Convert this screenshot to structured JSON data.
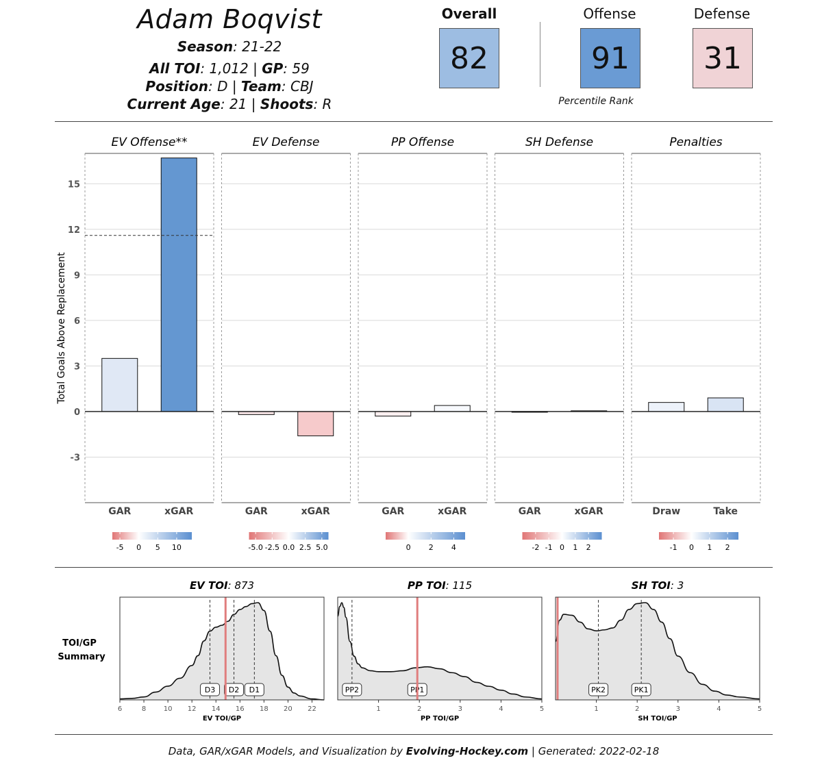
{
  "header": {
    "player_name": "Adam Boqvist",
    "season_label": "Season",
    "season_value": ": 21-22",
    "toi_label": "All TOI",
    "toi_value": ": 1,012 | ",
    "gp_label": "GP",
    "gp_value": ": 59",
    "position_label": "Position",
    "position_value": ": D | ",
    "team_label": "Team",
    "team_value": ": CBJ",
    "age_label": "Current Age",
    "age_value": ": 21 | ",
    "shoots_label": "Shoots",
    "shoots_value": ": R"
  },
  "ranks": {
    "overall_label": "Overall",
    "overall_value": "82",
    "overall_color": "#9dbde2",
    "offense_label": "Offense",
    "offense_value": "91",
    "offense_color": "#6a9bd4",
    "defense_label": "Defense",
    "defense_value": "31",
    "defense_color": "#f0d3d6",
    "note": "Percentile Rank"
  },
  "chart_data": [
    {
      "type": "bar",
      "ylabel": "Total Goals Above Replacement",
      "ylim": [
        -6,
        17
      ],
      "yticks": [
        -3,
        0,
        3,
        6,
        9,
        12,
        15
      ],
      "grid": true,
      "panels": [
        {
          "title": "EV Offense**",
          "categories": [
            "GAR",
            "xGAR"
          ],
          "values": [
            3.5,
            16.7
          ],
          "reference_line": 11.6,
          "colors": [
            "#e0e8f5",
            "#6497d1"
          ],
          "legend": {
            "ticks": [
              "-5",
              "0",
              "5",
              "10"
            ],
            "min": -7,
            "max": 14
          }
        },
        {
          "title": "EV Defense",
          "categories": [
            "GAR",
            "xGAR"
          ],
          "values": [
            -0.2,
            -1.6
          ],
          "colors": [
            "#f6e3e5",
            "#f6cacb"
          ],
          "legend": {
            "ticks": [
              "-5.0",
              "-2.5",
              "0.0",
              "2.5",
              "5.0"
            ],
            "min": -6,
            "max": 6
          }
        },
        {
          "title": "PP Offense",
          "categories": [
            "GAR",
            "xGAR"
          ],
          "values": [
            -0.3,
            0.4
          ],
          "colors": [
            "#fbeeef",
            "#f7f9fd"
          ],
          "legend": {
            "ticks": [
              "0",
              "2",
              "4"
            ],
            "min": -2,
            "max": 5
          }
        },
        {
          "title": "SH Defense",
          "categories": [
            "GAR",
            "xGAR"
          ],
          "values": [
            0.0,
            0.05
          ],
          "colors": [
            "#f7f7f7",
            "#f7f7f7"
          ],
          "legend": {
            "ticks": [
              "-2",
              "-1",
              "0",
              "1",
              "2"
            ],
            "min": -3,
            "max": 3
          }
        },
        {
          "title": "Penalties",
          "categories": [
            "Draw",
            "Take"
          ],
          "values": [
            0.6,
            0.9
          ],
          "colors": [
            "#edf2fa",
            "#d9e4f4"
          ],
          "legend": {
            "ticks": [
              "-1",
              "0",
              "1",
              "2"
            ],
            "min": -1.8,
            "max": 2.6
          }
        }
      ]
    },
    {
      "type": "area",
      "row_label": "TOI/GP Summary",
      "panels": [
        {
          "title_bold": "EV TOI",
          "title_value": ": 873",
          "xlabel": "EV TOI/GP",
          "xlim": [
            6,
            23
          ],
          "xticks": [
            6,
            8,
            10,
            12,
            14,
            16,
            18,
            20,
            22
          ],
          "player_value": 14.8,
          "markers": [
            {
              "label": "D3",
              "x": 13.5
            },
            {
              "label": "D2",
              "x": 15.5
            },
            {
              "label": "D1",
              "x": 17.2
            }
          ],
          "x": [
            6,
            7,
            8,
            9,
            10,
            11,
            12,
            12.5,
            13,
            13.5,
            14,
            14.5,
            15,
            15.5,
            16,
            16.5,
            17,
            17.5,
            18,
            18.5,
            19,
            19.5,
            20,
            20.5,
            21,
            22,
            23
          ],
          "density": [
            0.01,
            0.015,
            0.03,
            0.08,
            0.14,
            0.22,
            0.35,
            0.45,
            0.6,
            0.7,
            0.74,
            0.76,
            0.8,
            0.87,
            0.92,
            0.95,
            0.98,
            0.99,
            0.91,
            0.7,
            0.45,
            0.25,
            0.13,
            0.07,
            0.04,
            0.01,
            0.0
          ]
        },
        {
          "title_bold": "PP TOI",
          "title_value": ": 115",
          "xlabel": "PP TOI/GP",
          "xlim": [
            0,
            5
          ],
          "xticks": [
            1,
            2,
            3,
            4,
            5
          ],
          "player_value": 1.95,
          "markers": [
            {
              "label": "PP2",
              "x": 0.35
            },
            {
              "label": "PP1",
              "x": 1.95
            }
          ],
          "x": [
            0,
            0.05,
            0.1,
            0.15,
            0.2,
            0.3,
            0.4,
            0.5,
            0.6,
            0.8,
            1.0,
            1.3,
            1.6,
            1.9,
            2.2,
            2.5,
            2.8,
            3.1,
            3.4,
            3.7,
            4.0,
            4.3,
            4.6,
            5.0
          ],
          "density": [
            0.86,
            0.96,
            1.0,
            0.95,
            0.85,
            0.6,
            0.45,
            0.37,
            0.33,
            0.3,
            0.29,
            0.29,
            0.3,
            0.33,
            0.34,
            0.32,
            0.28,
            0.24,
            0.18,
            0.14,
            0.1,
            0.06,
            0.03,
            0.01
          ]
        },
        {
          "title_bold": "SH TOI",
          "title_value": ": 3",
          "xlabel": "SH TOI/GP",
          "xlim": [
            0,
            5
          ],
          "xticks": [
            1,
            2,
            3,
            4,
            5
          ],
          "player_value": 0.05,
          "markers": [
            {
              "label": "PK2",
              "x": 1.05
            },
            {
              "label": "PK1",
              "x": 2.1
            }
          ],
          "x": [
            0,
            0.1,
            0.2,
            0.4,
            0.6,
            0.8,
            1.0,
            1.2,
            1.4,
            1.6,
            1.8,
            2.0,
            2.2,
            2.4,
            2.6,
            2.8,
            3.0,
            3.3,
            3.6,
            3.9,
            4.2,
            4.5,
            5.0
          ],
          "density": [
            0.6,
            0.82,
            0.88,
            0.87,
            0.8,
            0.73,
            0.71,
            0.72,
            0.74,
            0.82,
            0.93,
            0.99,
            1.0,
            0.93,
            0.8,
            0.63,
            0.45,
            0.28,
            0.16,
            0.09,
            0.05,
            0.03,
            0.01
          ]
        }
      ]
    }
  ],
  "footer": {
    "prefix": "Data, GAR/xGAR Models, and Visualization by ",
    "brand": "Evolving-Hockey.com",
    "suffix": " | Generated: 2022-02-18"
  },
  "colors": {
    "negative": "#e07676",
    "neutral": "#ffffff",
    "positive": "#5b8fd0",
    "player_line": "#e07e7e",
    "density_fill": "#e5e5e5"
  }
}
